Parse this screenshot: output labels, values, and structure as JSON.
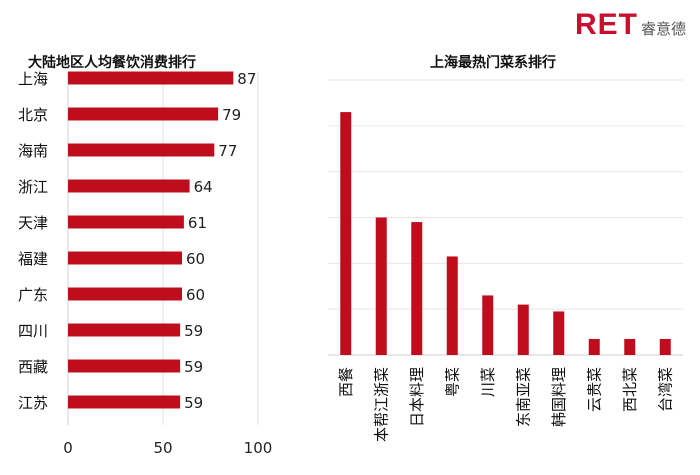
{
  "logo": {
    "mark": "RET",
    "text": "睿意德"
  },
  "chart_data": [
    {
      "type": "bar",
      "orientation": "horizontal",
      "title": "大陆地区人均餐饮消费排行",
      "categories": [
        "上海",
        "北京",
        "海南",
        "浙江",
        "天津",
        "福建",
        "广东",
        "四川",
        "西藏",
        "江苏"
      ],
      "values": [
        87,
        79,
        77,
        64,
        61,
        60,
        60,
        59,
        59,
        59
      ],
      "xlim": [
        0,
        100
      ],
      "xticks": [
        "0",
        "50",
        "100"
      ],
      "data_labels": true,
      "grid": true,
      "color": "#c00d1e"
    },
    {
      "type": "bar",
      "orientation": "vertical",
      "title": "上海最热门菜系排行",
      "categories": [
        "西餐",
        "本帮江浙菜",
        "日本料理",
        "粤菜",
        "川菜",
        "东南亚菜",
        "韩国料理",
        "云贵菜",
        "西北菜",
        "台湾菜"
      ],
      "values": [
        53,
        30,
        29,
        21.5,
        13,
        11,
        9.5,
        3.5,
        3.5,
        3.5
      ],
      "ylim": [
        0,
        60
      ],
      "grid": true,
      "color": "#c00d1e"
    }
  ]
}
